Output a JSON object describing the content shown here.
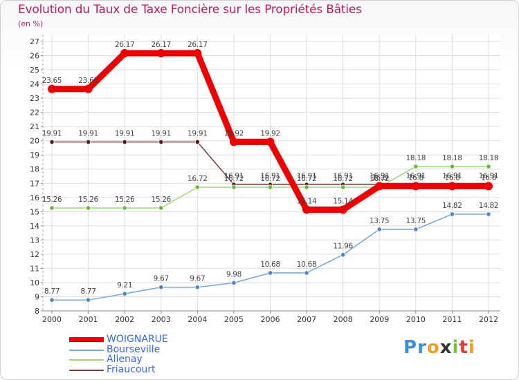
{
  "chart_data": {
    "type": "line",
    "title": "Evolution du Taux de Taxe Foncière sur les Propriétés Bâties",
    "subtitle": "(en %)",
    "xlabel": "",
    "ylabel": "(en %)",
    "categories": [
      "2000",
      "2001",
      "2002",
      "2003",
      "2004",
      "2005",
      "2006",
      "2007",
      "2008",
      "2009",
      "2010",
      "2011",
      "2012"
    ],
    "y_ticks": [
      "8",
      "9",
      "10",
      "11",
      "12",
      "13",
      "14",
      "15",
      "16",
      "17",
      "18",
      "19",
      "20",
      "21",
      "22",
      "23",
      "24",
      "25",
      "26",
      "27"
    ],
    "ylim": [
      8,
      27
    ],
    "grid": true,
    "legend_position": "bottom-left",
    "series": [
      {
        "name": "WOIGNARUE",
        "color": "#ee0000",
        "marker_color": "#ee0000",
        "values": [
          23.65,
          23.65,
          26.17,
          26.17,
          26.17,
          19.92,
          19.92,
          15.14,
          15.14,
          16.8,
          16.8,
          16.8,
          16.8
        ],
        "labels": [
          "23.65",
          "23.65",
          "26.17",
          "26.17",
          "26.17",
          "19.92",
          "19.92",
          "15.14",
          "15.14",
          "16.8",
          "16.8",
          "16.8",
          "16.8"
        ]
      },
      {
        "name": "Bourseville",
        "color": "#6fa8dc",
        "marker_color": "#4a86c8",
        "values": [
          8.77,
          8.77,
          9.21,
          9.67,
          9.67,
          9.98,
          10.68,
          10.68,
          11.96,
          13.75,
          13.75,
          14.82,
          14.82
        ],
        "labels": [
          "8.77",
          "8.77",
          "9.21",
          "9.67",
          "9.67",
          "9.98",
          "10.68",
          "10.68",
          "11.96",
          "13.75",
          "13.75",
          "14.82",
          "14.82"
        ]
      },
      {
        "name": "Allenay",
        "color": "#99dd66",
        "marker_color": "#66bb33",
        "values": [
          15.26,
          15.26,
          15.26,
          15.26,
          16.72,
          16.72,
          16.72,
          16.72,
          16.72,
          16.72,
          18.18,
          18.18,
          18.18
        ],
        "labels": [
          "15.26",
          "15.26",
          "15.26",
          "15.26",
          "16.72",
          "16.72",
          "16.72",
          "16.72",
          "16.72",
          "16.72",
          "18.18",
          "18.18",
          "18.18"
        ]
      },
      {
        "name": "Friaucourt",
        "color": "#7b3b3b",
        "marker_color": "#5a1a1a",
        "values": [
          19.91,
          19.91,
          19.91,
          19.91,
          19.91,
          16.91,
          16.91,
          16.91,
          16.91,
          16.91,
          16.91,
          16.91,
          16.91
        ],
        "labels": [
          "19.91",
          "19.91",
          "19.91",
          "19.91",
          "19.91",
          "16.91",
          "16.91",
          "16.91",
          "16.91",
          "16.91",
          "16.91",
          "16.91",
          "16.91"
        ]
      }
    ]
  },
  "logo": {
    "letters": [
      "P",
      "r",
      "o",
      "x",
      "i",
      "t",
      "i"
    ],
    "colors": [
      "#3b8fd6",
      "#3b8fd6",
      "#f0a020",
      "#333333",
      "#7cc23a",
      "#e23a3a",
      "#f0a020"
    ]
  }
}
